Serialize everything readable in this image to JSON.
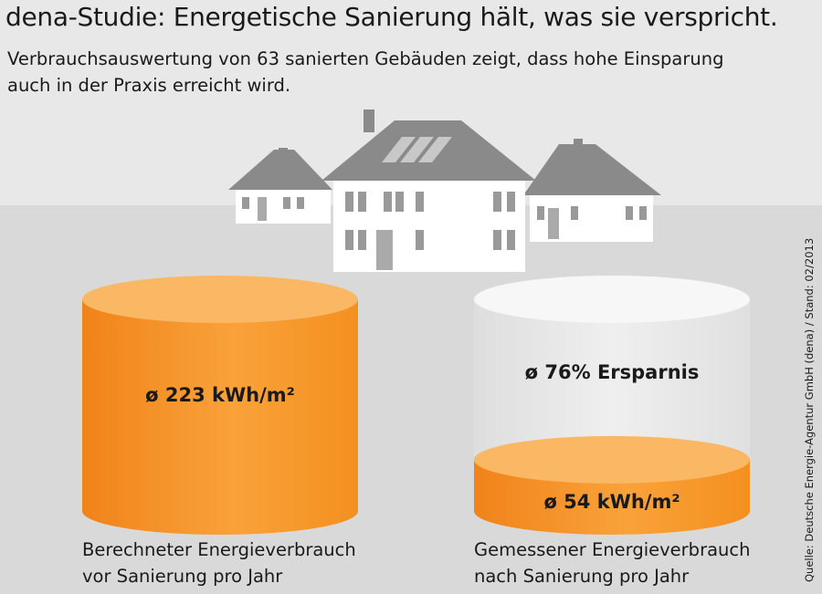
{
  "chart_data": {
    "type": "cylinder",
    "title": "dena-Studie: Energetische Sanierung hält, was sie verspricht.",
    "subtitle": "Verbrauchsauswertung von 63 sanierten Gebäuden zeigt, dass hohe Einsparung\nauch in der Praxis erreicht wird.",
    "categories": [
      "Berechneter Energieverbrauch\nvor Sanierung pro Jahr",
      "Gemessener Energieverbrauch\nnach Sanierung pro Jahr"
    ],
    "values": [
      223,
      54
    ],
    "value_labels": [
      "ø 223 kWh/m²",
      "ø 54 kWh/m²"
    ],
    "annotation": "ø 76% Ersparnis",
    "source": "Quelle: Deutsche Energie-Agentur GmbH (dena) / Stand: 02/2013",
    "color": "#f7941d"
  }
}
